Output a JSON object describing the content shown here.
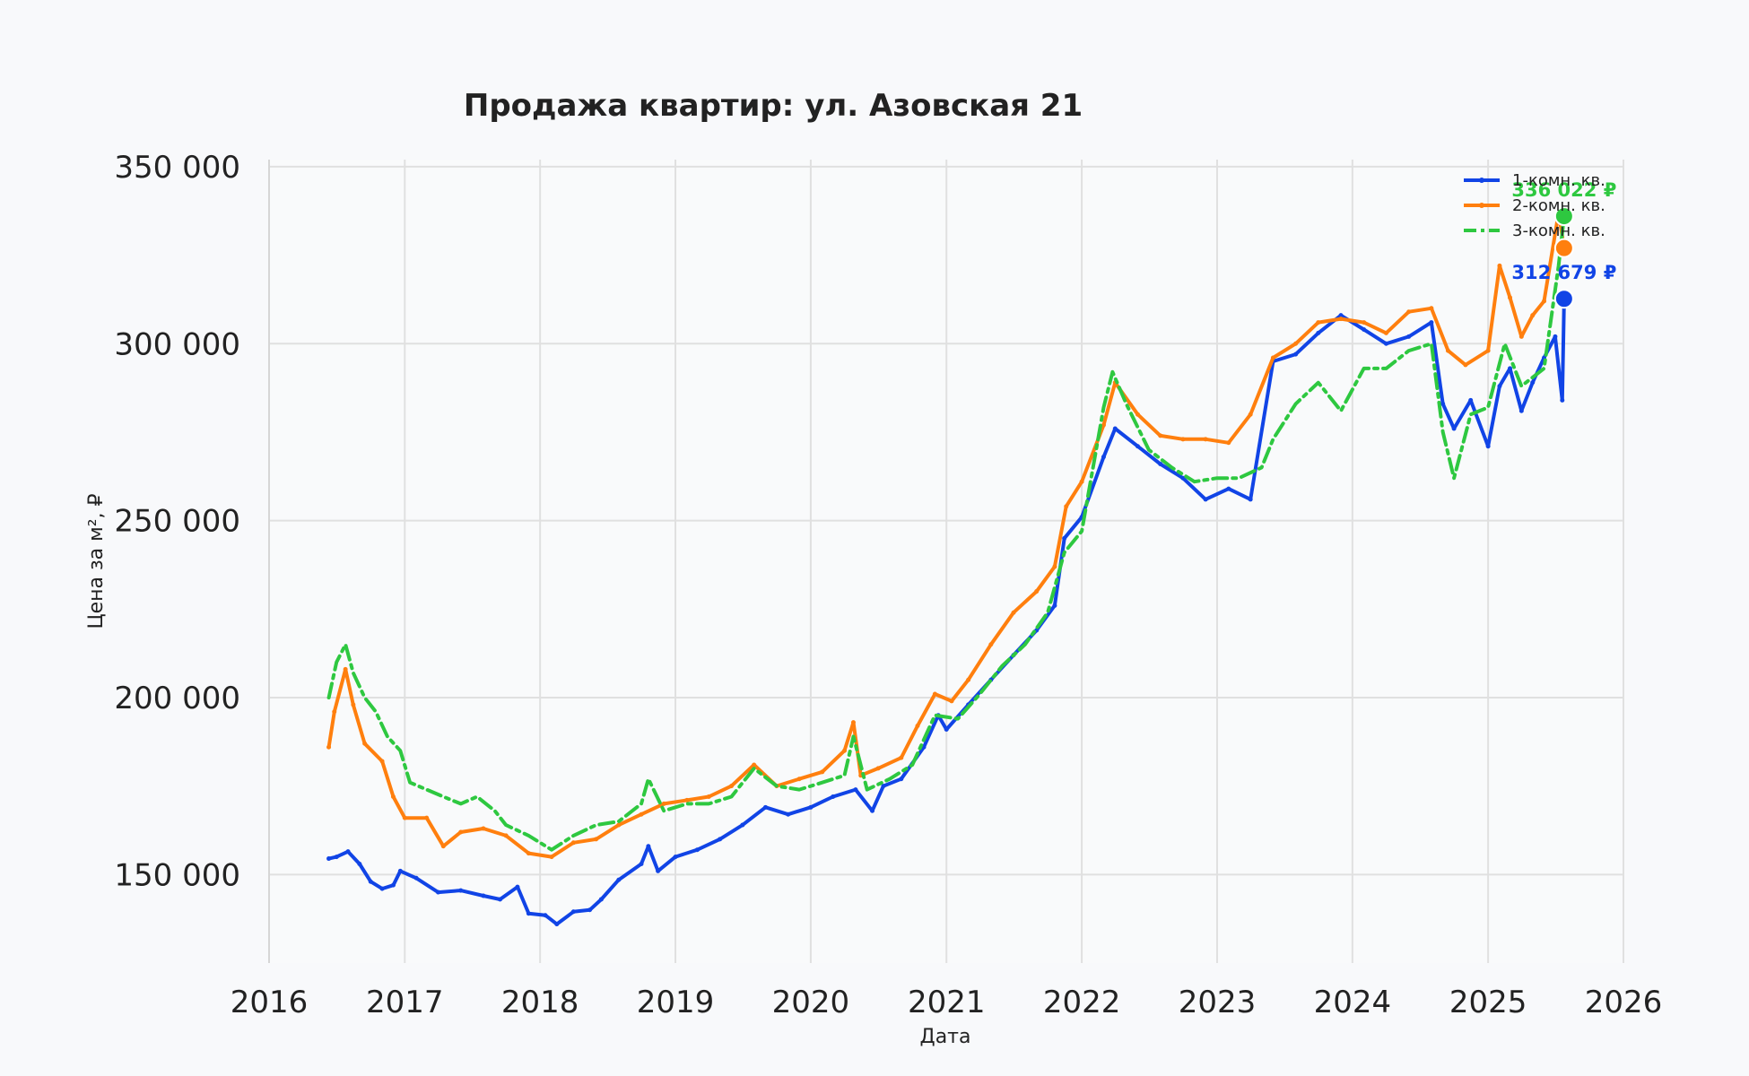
{
  "chart_data": {
    "type": "line",
    "title": "Продажа квартир: ул. Азовская 21",
    "xlabel": "Дата",
    "ylabel": "Цена за м², ₽",
    "xlim": [
      "2016-01-01",
      "2026-01-01"
    ],
    "ylim": [
      125000,
      352000
    ],
    "x_ticks": [
      "2016",
      "2017",
      "2018",
      "2019",
      "2020",
      "2021",
      "2022",
      "2023",
      "2024",
      "2025",
      "2026"
    ],
    "y_ticks": [
      150000,
      200000,
      250000,
      300000,
      350000
    ],
    "y_tick_labels": [
      "150 000",
      "200 000",
      "250 000",
      "300 000",
      "350 000"
    ],
    "grid": true,
    "legend_position": "top-right",
    "series": [
      {
        "name": "1-комн. кв.",
        "color": "#1144e6",
        "style": "solid-marker",
        "end_label": "312 679 ₽",
        "end_value": 312679,
        "points": [
          [
            "2016-06-10",
            154500
          ],
          [
            "2016-07-01",
            155000
          ],
          [
            "2016-08-01",
            156500
          ],
          [
            "2016-09-01",
            153000
          ],
          [
            "2016-10-01",
            148000
          ],
          [
            "2016-11-01",
            146000
          ],
          [
            "2016-12-01",
            147000
          ],
          [
            "2016-12-20",
            151000
          ],
          [
            "2017-02-01",
            149000
          ],
          [
            "2017-04-01",
            145000
          ],
          [
            "2017-06-01",
            145500
          ],
          [
            "2017-08-01",
            144000
          ],
          [
            "2017-09-15",
            143000
          ],
          [
            "2017-11-01",
            146500
          ],
          [
            "2017-12-01",
            139000
          ],
          [
            "2018-01-15",
            138500
          ],
          [
            "2018-02-15",
            136000
          ],
          [
            "2018-04-01",
            139500
          ],
          [
            "2018-05-15",
            140000
          ],
          [
            "2018-06-15",
            143000
          ],
          [
            "2018-08-01",
            148500
          ],
          [
            "2018-10-01",
            153000
          ],
          [
            "2018-10-20",
            158000
          ],
          [
            "2018-11-15",
            151000
          ],
          [
            "2019-01-01",
            155000
          ],
          [
            "2019-03-01",
            157000
          ],
          [
            "2019-05-01",
            160000
          ],
          [
            "2019-07-01",
            164000
          ],
          [
            "2019-09-01",
            169000
          ],
          [
            "2019-11-01",
            167000
          ],
          [
            "2020-01-01",
            169000
          ],
          [
            "2020-03-01",
            172000
          ],
          [
            "2020-05-01",
            174000
          ],
          [
            "2020-06-15",
            168000
          ],
          [
            "2020-07-15",
            175000
          ],
          [
            "2020-09-01",
            177000
          ],
          [
            "2020-11-01",
            186000
          ],
          [
            "2020-12-10",
            195000
          ],
          [
            "2021-01-01",
            191000
          ],
          [
            "2021-03-01",
            198000
          ],
          [
            "2021-05-01",
            205000
          ],
          [
            "2021-07-01",
            212000
          ],
          [
            "2021-09-01",
            219000
          ],
          [
            "2021-10-20",
            226000
          ],
          [
            "2021-11-15",
            245000
          ],
          [
            "2022-01-01",
            251000
          ],
          [
            "2022-03-01",
            268000
          ],
          [
            "2022-04-01",
            276000
          ],
          [
            "2022-06-01",
            271000
          ],
          [
            "2022-08-01",
            266000
          ],
          [
            "2022-10-01",
            262000
          ],
          [
            "2022-12-01",
            256000
          ],
          [
            "2023-02-01",
            259000
          ],
          [
            "2023-04-01",
            256000
          ],
          [
            "2023-06-01",
            295000
          ],
          [
            "2023-08-01",
            297000
          ],
          [
            "2023-10-01",
            303000
          ],
          [
            "2023-12-01",
            308000
          ],
          [
            "2024-02-01",
            304000
          ],
          [
            "2024-04-01",
            300000
          ],
          [
            "2024-06-01",
            302000
          ],
          [
            "2024-08-01",
            306000
          ],
          [
            "2024-09-01",
            283000
          ],
          [
            "2024-10-01",
            276000
          ],
          [
            "2024-11-15",
            284000
          ],
          [
            "2025-01-01",
            271000
          ],
          [
            "2025-02-01",
            288000
          ],
          [
            "2025-03-01",
            293000
          ],
          [
            "2025-04-01",
            281000
          ],
          [
            "2025-05-01",
            289000
          ],
          [
            "2025-06-01",
            296000
          ],
          [
            "2025-07-01",
            302000
          ],
          [
            "2025-07-20",
            284000
          ],
          [
            "2025-07-25",
            312679
          ]
        ]
      },
      {
        "name": "2-комн. кв.",
        "color": "#ff7f0e",
        "style": "solid-marker",
        "end_label": "",
        "end_value": 327000,
        "points": [
          [
            "2016-06-10",
            186000
          ],
          [
            "2016-06-25",
            196000
          ],
          [
            "2016-07-25",
            208000
          ],
          [
            "2016-08-15",
            198000
          ],
          [
            "2016-09-15",
            187000
          ],
          [
            "2016-11-01",
            182000
          ],
          [
            "2016-12-01",
            172000
          ],
          [
            "2017-01-01",
            166000
          ],
          [
            "2017-03-01",
            166000
          ],
          [
            "2017-04-15",
            158000
          ],
          [
            "2017-06-01",
            162000
          ],
          [
            "2017-08-01",
            163000
          ],
          [
            "2017-10-01",
            161000
          ],
          [
            "2017-12-01",
            156000
          ],
          [
            "2018-02-01",
            155000
          ],
          [
            "2018-04-01",
            159000
          ],
          [
            "2018-06-01",
            160000
          ],
          [
            "2018-08-01",
            164000
          ],
          [
            "2018-10-01",
            167000
          ],
          [
            "2018-12-01",
            170000
          ],
          [
            "2019-02-01",
            171000
          ],
          [
            "2019-04-01",
            172000
          ],
          [
            "2019-06-01",
            175000
          ],
          [
            "2019-08-01",
            181000
          ],
          [
            "2019-10-01",
            175000
          ],
          [
            "2019-12-01",
            177000
          ],
          [
            "2020-02-01",
            179000
          ],
          [
            "2020-04-01",
            185000
          ],
          [
            "2020-04-25",
            193000
          ],
          [
            "2020-05-15",
            178000
          ],
          [
            "2020-07-01",
            180000
          ],
          [
            "2020-09-01",
            183000
          ],
          [
            "2020-10-15",
            192000
          ],
          [
            "2020-12-01",
            201000
          ],
          [
            "2021-01-15",
            199000
          ],
          [
            "2021-03-01",
            205000
          ],
          [
            "2021-05-01",
            215000
          ],
          [
            "2021-07-01",
            224000
          ],
          [
            "2021-09-01",
            230000
          ],
          [
            "2021-10-20",
            237000
          ],
          [
            "2021-11-20",
            254000
          ],
          [
            "2022-01-01",
            261000
          ],
          [
            "2022-03-01",
            277000
          ],
          [
            "2022-04-01",
            289000
          ],
          [
            "2022-06-01",
            280000
          ],
          [
            "2022-08-01",
            274000
          ],
          [
            "2022-10-01",
            273000
          ],
          [
            "2022-12-01",
            273000
          ],
          [
            "2023-02-01",
            272000
          ],
          [
            "2023-04-01",
            280000
          ],
          [
            "2023-06-01",
            296000
          ],
          [
            "2023-08-01",
            300000
          ],
          [
            "2023-10-01",
            306000
          ],
          [
            "2023-12-01",
            307000
          ],
          [
            "2024-02-01",
            306000
          ],
          [
            "2024-04-01",
            303000
          ],
          [
            "2024-06-01",
            309000
          ],
          [
            "2024-08-01",
            310000
          ],
          [
            "2024-09-15",
            298000
          ],
          [
            "2024-11-01",
            294000
          ],
          [
            "2025-01-01",
            298000
          ],
          [
            "2025-02-01",
            322000
          ],
          [
            "2025-03-01",
            313000
          ],
          [
            "2025-04-01",
            302000
          ],
          [
            "2025-05-01",
            308000
          ],
          [
            "2025-06-01",
            312000
          ],
          [
            "2025-07-10",
            337000
          ],
          [
            "2025-07-25",
            327000
          ]
        ]
      },
      {
        "name": "3-комн. кв.",
        "color": "#2ec840",
        "style": "dash-dot",
        "end_label": "336 022 ₽",
        "end_value": 336022,
        "points": [
          [
            "2016-06-10",
            200000
          ],
          [
            "2016-07-01",
            210000
          ],
          [
            "2016-07-25",
            215000
          ],
          [
            "2016-08-15",
            207000
          ],
          [
            "2016-09-15",
            200000
          ],
          [
            "2016-10-15",
            196000
          ],
          [
            "2016-11-15",
            189000
          ],
          [
            "2016-12-20",
            185000
          ],
          [
            "2017-01-15",
            176000
          ],
          [
            "2017-03-01",
            174000
          ],
          [
            "2017-04-15",
            172000
          ],
          [
            "2017-06-01",
            170000
          ],
          [
            "2017-07-15",
            172000
          ],
          [
            "2017-09-01",
            168000
          ],
          [
            "2017-10-01",
            164000
          ],
          [
            "2017-12-01",
            161000
          ],
          [
            "2018-02-01",
            157000
          ],
          [
            "2018-04-01",
            161000
          ],
          [
            "2018-06-01",
            164000
          ],
          [
            "2018-08-01",
            165000
          ],
          [
            "2018-10-01",
            170000
          ],
          [
            "2018-10-20",
            177000
          ],
          [
            "2018-12-01",
            168000
          ],
          [
            "2019-02-01",
            170000
          ],
          [
            "2019-04-01",
            170000
          ],
          [
            "2019-06-01",
            172000
          ],
          [
            "2019-08-01",
            180000
          ],
          [
            "2019-10-01",
            175000
          ],
          [
            "2019-12-01",
            174000
          ],
          [
            "2020-02-01",
            176000
          ],
          [
            "2020-04-01",
            178000
          ],
          [
            "2020-04-25",
            189000
          ],
          [
            "2020-06-01",
            174000
          ],
          [
            "2020-08-01",
            177000
          ],
          [
            "2020-10-01",
            181000
          ],
          [
            "2020-12-01",
            195000
          ],
          [
            "2021-02-01",
            194000
          ],
          [
            "2021-04-01",
            201000
          ],
          [
            "2021-06-01",
            209000
          ],
          [
            "2021-08-01",
            215000
          ],
          [
            "2021-10-01",
            224000
          ],
          [
            "2021-11-15",
            241000
          ],
          [
            "2022-01-01",
            247000
          ],
          [
            "2022-03-01",
            282000
          ],
          [
            "2022-03-25",
            292000
          ],
          [
            "2022-05-01",
            283000
          ],
          [
            "2022-07-01",
            270000
          ],
          [
            "2022-09-01",
            265000
          ],
          [
            "2022-11-01",
            261000
          ],
          [
            "2023-01-01",
            262000
          ],
          [
            "2023-03-01",
            262000
          ],
          [
            "2023-05-01",
            265000
          ],
          [
            "2023-06-01",
            273000
          ],
          [
            "2023-08-01",
            283000
          ],
          [
            "2023-10-01",
            289000
          ],
          [
            "2023-12-01",
            281000
          ],
          [
            "2024-02-01",
            293000
          ],
          [
            "2024-04-01",
            293000
          ],
          [
            "2024-06-01",
            298000
          ],
          [
            "2024-08-01",
            300000
          ],
          [
            "2024-09-01",
            275000
          ],
          [
            "2024-10-01",
            262000
          ],
          [
            "2024-11-15",
            280000
          ],
          [
            "2025-01-01",
            282000
          ],
          [
            "2025-02-15",
            300000
          ],
          [
            "2025-04-01",
            288000
          ],
          [
            "2025-06-01",
            293000
          ],
          [
            "2025-07-10",
            322000
          ],
          [
            "2025-07-25",
            336022
          ]
        ]
      }
    ]
  }
}
